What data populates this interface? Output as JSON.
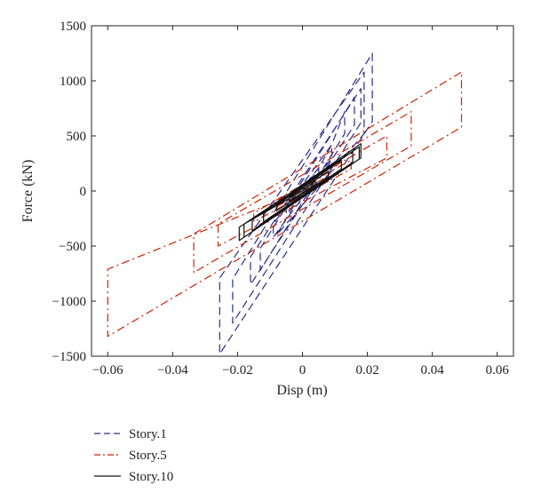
{
  "chart_data": {
    "type": "line",
    "title": "",
    "xlabel": "Disp (m)",
    "ylabel": "Force (kN)",
    "xlim": [
      -0.065,
      0.065
    ],
    "ylim": [
      -1500,
      1500
    ],
    "xticks": [
      -0.06,
      -0.04,
      -0.02,
      0,
      0.02,
      0.04,
      0.06
    ],
    "xtick_labels": [
      "−0.06",
      "−0.04",
      "−0.02",
      "0",
      "0.02",
      "0.04",
      "0.06"
    ],
    "yticks": [
      -1500,
      -1000,
      -500,
      0,
      500,
      1000,
      1500
    ],
    "ytick_labels": [
      "−1500",
      "−1000",
      "−500",
      "0",
      "500",
      "1000",
      "1500"
    ],
    "grid": false,
    "legend_position": "below-left",
    "series": [
      {
        "name": "Story.1",
        "color": "#2b2b8c",
        "dash": "dashed",
        "points": [
          [
            0,
            0
          ],
          [
            0.005,
            210
          ],
          [
            0.005,
            150
          ],
          [
            -0.005,
            -210
          ],
          [
            -0.005,
            -150
          ],
          [
            0.005,
            210
          ],
          [
            0.009,
            420
          ],
          [
            0.009,
            300
          ],
          [
            -0.009,
            -420
          ],
          [
            -0.009,
            -300
          ],
          [
            0.009,
            420
          ],
          [
            0.013,
            720
          ],
          [
            0.013,
            520
          ],
          [
            -0.013,
            -720
          ],
          [
            -0.013,
            -520
          ],
          [
            0.016,
            850
          ],
          [
            0.016,
            600
          ],
          [
            -0.016,
            -850
          ],
          [
            -0.016,
            -600
          ],
          [
            0.018,
            930
          ],
          [
            0.018,
            620
          ],
          [
            -0.0215,
            -1200
          ],
          [
            -0.0215,
            -800
          ],
          [
            0.0215,
            1250
          ],
          [
            0.0215,
            630
          ],
          [
            -0.0255,
            -1480
          ],
          [
            -0.0255,
            -790
          ],
          [
            0.019,
            1080
          ],
          [
            0.019,
            520
          ],
          [
            -0.008,
            -400
          ],
          [
            0,
            0
          ]
        ]
      },
      {
        "name": "Story.5",
        "color": "#cc2200",
        "dash": "dashdot",
        "points": [
          [
            0,
            0
          ],
          [
            0.008,
            140
          ],
          [
            0.008,
            90
          ],
          [
            -0.008,
            -140
          ],
          [
            -0.008,
            -90
          ],
          [
            0.015,
            280
          ],
          [
            0.015,
            200
          ],
          [
            -0.015,
            -280
          ],
          [
            -0.015,
            -200
          ],
          [
            0.026,
            500
          ],
          [
            0.026,
            300
          ],
          [
            -0.026,
            -500
          ],
          [
            -0.026,
            -300
          ],
          [
            0.0335,
            720
          ],
          [
            0.0335,
            410
          ],
          [
            -0.0335,
            -740
          ],
          [
            -0.0335,
            -390
          ],
          [
            0.049,
            1080
          ],
          [
            0.049,
            580
          ],
          [
            -0.06,
            -1320
          ],
          [
            -0.06,
            -710
          ],
          [
            0.0,
            0
          ]
        ]
      },
      {
        "name": "Story.10",
        "color": "#111111",
        "dash": "solid",
        "points": [
          [
            0,
            0
          ],
          [
            0.004,
            90
          ],
          [
            0.004,
            60
          ],
          [
            -0.004,
            -90
          ],
          [
            -0.004,
            -60
          ],
          [
            0.008,
            180
          ],
          [
            0.008,
            130
          ],
          [
            -0.008,
            -180
          ],
          [
            -0.008,
            -130
          ],
          [
            0.012,
            280
          ],
          [
            0.012,
            200
          ],
          [
            -0.012,
            -280
          ],
          [
            -0.012,
            -200
          ],
          [
            0.0155,
            360
          ],
          [
            0.0155,
            260
          ],
          [
            -0.0155,
            -360
          ],
          [
            -0.0155,
            -260
          ],
          [
            0.018,
            430
          ],
          [
            0.018,
            300
          ],
          [
            -0.0195,
            -450
          ],
          [
            -0.0195,
            -330
          ],
          [
            0.0175,
            400
          ],
          [
            0.0175,
            290
          ],
          [
            -0.018,
            -420
          ],
          [
            -0.018,
            -300
          ],
          [
            0,
            0
          ]
        ]
      }
    ]
  }
}
